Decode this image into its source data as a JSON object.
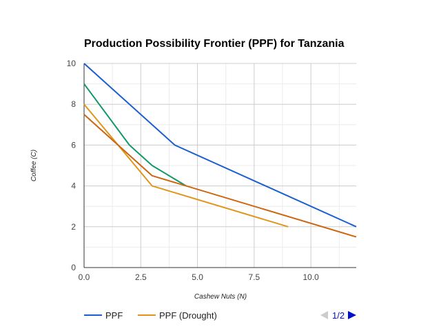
{
  "chart_data": {
    "type": "line",
    "title": "Production Possibility Frontier (PPF) for Tanzania",
    "xlabel": "Cashew Nuts (N)",
    "ylabel": "Coffee (C)",
    "xlim": [
      0,
      12
    ],
    "ylim": [
      0,
      10
    ],
    "x_ticks": [
      0,
      2.5,
      5,
      7.5,
      10
    ],
    "x_tick_labels": [
      "0.0",
      "2.5",
      "5.0",
      "7.5",
      "10.0"
    ],
    "y_ticks": [
      0,
      2,
      4,
      6,
      8,
      10
    ],
    "y_tick_labels": [
      "0",
      "2",
      "4",
      "6",
      "8",
      "10"
    ],
    "grid": true,
    "legend_position": "bottom",
    "series": [
      {
        "name": "PPF",
        "color": "#1a5fd0",
        "x": [
          0,
          4,
          12
        ],
        "y": [
          10,
          6,
          2
        ]
      },
      {
        "name": "",
        "color": "#119966",
        "x": [
          0,
          2,
          3,
          4.5
        ],
        "y": [
          9,
          6,
          5,
          4
        ]
      },
      {
        "name": "PPF (Drought)",
        "color": "#e0961a",
        "x": [
          0,
          3,
          9
        ],
        "y": [
          8,
          4,
          2
        ]
      },
      {
        "name": "",
        "color": "#cc6611",
        "x": [
          0,
          3,
          12
        ],
        "y": [
          7.5,
          4.5,
          1.5
        ]
      }
    ]
  },
  "legend": {
    "items": [
      {
        "label": "PPF",
        "color": "#1a5fd0"
      },
      {
        "label": "PPF (Drought)",
        "color": "#e0961a"
      }
    ],
    "pager_label": "1/2",
    "prev_color": "#cccccc",
    "next_color": "#0011cc"
  }
}
